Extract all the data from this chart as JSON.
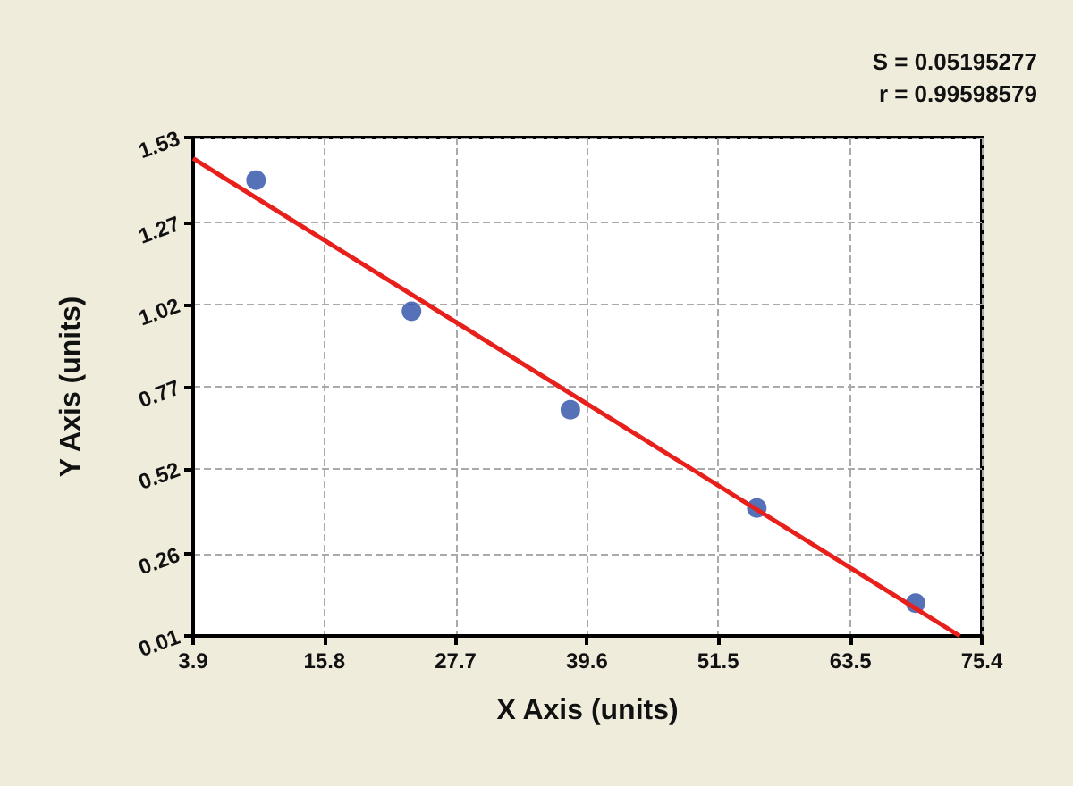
{
  "chart_data": {
    "type": "scatter",
    "xlabel": "X Axis (units)",
    "ylabel": "Y Axis (units)",
    "annotations": [
      "S = 0.05195277",
      "r = 0.99598579"
    ],
    "xlim": [
      3.9,
      75.4
    ],
    "xticks": [
      3.9,
      15.8,
      27.7,
      39.6,
      51.5,
      63.5,
      75.4
    ],
    "ylim": [
      0.01,
      1.53
    ],
    "yticks": [
      0.01,
      0.26,
      0.52,
      0.77,
      1.02,
      1.27,
      1.53
    ],
    "grid": true,
    "marker": "circle",
    "series": [
      {
        "color": "#2b4fa8",
        "x": [
          9.6,
          23.7,
          38.1,
          55.0,
          69.4
        ],
        "values": [
          1.4,
          1.0,
          0.7,
          0.4,
          0.11
        ]
      },
      {
        "type": "line",
        "color": "#e8201c",
        "x": [
          3.9,
          73.4
        ],
        "values": [
          1.466,
          0.01
        ],
        "marker": "none"
      }
    ]
  }
}
